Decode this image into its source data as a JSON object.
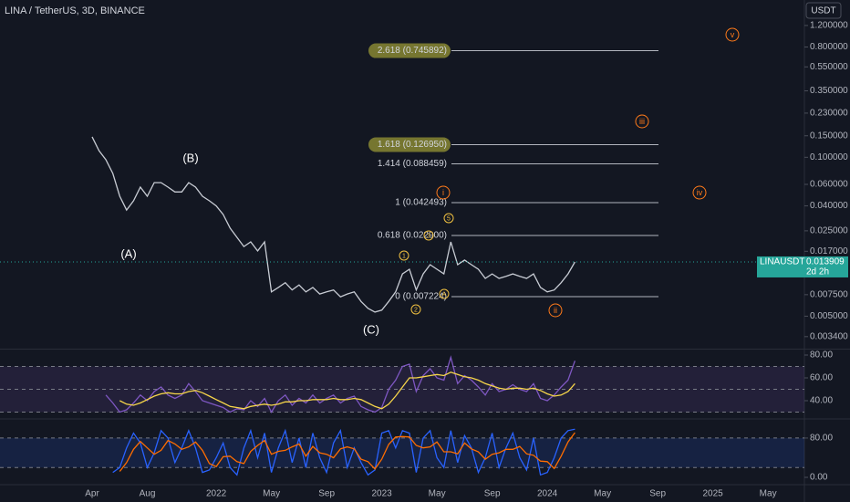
{
  "chart_data": [
    {
      "type": "line",
      "title": "LINA / TetherUS, 3D, BINANCE",
      "unit": "USDT",
      "log_scale": true,
      "ylim": [
        0.00271,
        1.94
      ],
      "yticks": [
        {
          "value": 1.2,
          "label": "1.200000"
        },
        {
          "value": 0.8,
          "label": "0.800000"
        },
        {
          "value": 0.55,
          "label": "0.550000"
        },
        {
          "value": 0.35,
          "label": "0.350000"
        },
        {
          "value": 0.23,
          "label": "0.230000"
        },
        {
          "value": 0.15,
          "label": "0.150000"
        },
        {
          "value": 0.1,
          "label": "0.100000"
        },
        {
          "value": 0.06,
          "label": "0.060000"
        },
        {
          "value": 0.04,
          "label": "0.040000"
        },
        {
          "value": 0.025,
          "label": "0.025000"
        },
        {
          "value": 0.017,
          "label": "0.017000"
        },
        {
          "value": 0.0075,
          "label": "0.007500"
        },
        {
          "value": 0.005,
          "label": "0.005000"
        },
        {
          "value": 0.0034,
          "label": "0.003400"
        }
      ],
      "categories": [
        "Apr",
        null,
        null,
        null,
        null,
        null,
        null,
        null,
        "Aug",
        null,
        null,
        null,
        null,
        null,
        null,
        null,
        null,
        null,
        "2022",
        null,
        null,
        null,
        null,
        null,
        null,
        null,
        "May",
        null,
        null,
        null,
        null,
        null,
        null,
        null,
        "Sep",
        null,
        null,
        null,
        null,
        null,
        null,
        null,
        "2023",
        null,
        null,
        null,
        null,
        null,
        null,
        null,
        "May",
        null,
        null,
        null,
        null,
        null,
        null,
        null,
        "Sep",
        null,
        null,
        null,
        null,
        null,
        null,
        null,
        "2024",
        null,
        null,
        null,
        null,
        null,
        null,
        null,
        "May",
        null,
        null,
        null,
        null,
        null,
        null,
        null,
        "Sep",
        null,
        null,
        null,
        null,
        null,
        null,
        null,
        "2025",
        null,
        null,
        null,
        null,
        null,
        null,
        null,
        "May",
        null,
        null,
        null,
        null,
        null
      ],
      "series": [
        {
          "color": "#c8ccd4",
          "values": [
            0.147,
            0.113,
            0.0955,
            0.0738,
            0.048,
            0.037,
            0.044,
            0.057,
            0.048,
            0.062,
            0.062,
            0.057,
            0.052,
            0.052,
            0.062,
            0.057,
            0.048,
            0.044,
            0.04,
            0.034,
            0.0263,
            0.0221,
            0.0186,
            0.0203,
            0.0171,
            0.0203,
            0.0079,
            0.0086,
            0.0094,
            0.0082,
            0.009,
            0.0079,
            0.0086,
            0.0076,
            0.0079,
            0.0082,
            0.0072,
            0.0076,
            0.0079,
            0.0066,
            0.0058,
            0.0054,
            0.0056,
            0.0066,
            0.0079,
            0.0111,
            0.0121,
            0.0082,
            0.0111,
            0.0132,
            0.0121,
            0.0111,
            0.0203,
            0.0132,
            0.0144,
            0.0132,
            0.0121,
            0.0102,
            0.0111,
            0.0102,
            0.0106,
            0.0111,
            0.0106,
            0.0102,
            0.0111,
            0.0086,
            0.0079,
            0.0082,
            0.0094,
            0.0111,
            0.0139,
            null,
            null,
            null,
            null,
            null,
            null,
            null,
            null,
            null,
            null,
            null,
            null,
            null,
            null,
            null,
            null,
            null,
            null,
            null,
            null,
            null,
            null,
            null,
            null,
            null,
            null,
            null,
            null,
            null,
            null,
            null,
            null,
            null
          ]
        }
      ],
      "fib_levels": [
        {
          "label": "2.618 (0.745892)",
          "value": 0.745892
        },
        {
          "label": "1.618 (0.126950)",
          "value": 0.12695
        },
        {
          "label": "1.414 (0.088459)",
          "value": 0.088459
        },
        {
          "label": "1 (0.042493)",
          "value": 0.042493
        },
        {
          "label": "0.618 (0.022900)",
          "value": 0.0229
        },
        {
          "label": "0 (0.007224)",
          "value": 0.007224
        }
      ],
      "wave_labels": [
        "(A)",
        "(B)",
        "(C)",
        "1",
        "2",
        "3",
        "5",
        "A",
        "i",
        "ii",
        "iii",
        "iv",
        "v"
      ],
      "last_price": {
        "symbol": "LINAUSDT",
        "value": 0.013909,
        "countdown": "2d 2h"
      }
    },
    {
      "type": "line",
      "ylim": [
        24.8,
        84.8
      ],
      "yticks": [
        {
          "value": 80,
          "label": "80.00"
        },
        {
          "value": 60,
          "label": "60.00"
        },
        {
          "value": 40,
          "label": "40.00"
        }
      ],
      "levels": [
        70,
        50,
        30
      ],
      "band": [
        30,
        70
      ],
      "band_color": "#7e57c2",
      "series": [
        {
          "color": "#7e57c2",
          "values": [
            null,
            null,
            45,
            38,
            30,
            32,
            38,
            45,
            40,
            48,
            52,
            45,
            42,
            45,
            55,
            48,
            40,
            38,
            36,
            34,
            30,
            33,
            32,
            40,
            35,
            42,
            30,
            40,
            45,
            36,
            42,
            38,
            45,
            38,
            42,
            45,
            38,
            42,
            44,
            35,
            32,
            30,
            34,
            50,
            58,
            70,
            72,
            48,
            62,
            68,
            60,
            58,
            78,
            55,
            62,
            58,
            52,
            45,
            55,
            48,
            50,
            54,
            50,
            48,
            55,
            42,
            40,
            45,
            52,
            58,
            75,
            null,
            null,
            null,
            null,
            null,
            null,
            null,
            null,
            null,
            null,
            null,
            null,
            null,
            null,
            null,
            null,
            null,
            null,
            null,
            null,
            null,
            null,
            null,
            null,
            null,
            null,
            null,
            null,
            null,
            null,
            null,
            null,
            null
          ]
        },
        {
          "color": "#f7d64a",
          "values": [
            null,
            null,
            null,
            null,
            40,
            37,
            36,
            38,
            41,
            44,
            46,
            47,
            46,
            46,
            48,
            49,
            47,
            44,
            41,
            38,
            35,
            34,
            33,
            35,
            36,
            37,
            36,
            37,
            39,
            39,
            40,
            40,
            41,
            41,
            41,
            42,
            41,
            41,
            42,
            41,
            38,
            35,
            33,
            37,
            44,
            52,
            60,
            60,
            61,
            62,
            63,
            62,
            65,
            63,
            61,
            60,
            58,
            55,
            53,
            51,
            50,
            51,
            51,
            50,
            51,
            49,
            46,
            44,
            45,
            48,
            55,
            null,
            null,
            null,
            null,
            null,
            null,
            null,
            null,
            null,
            null,
            null,
            null,
            null,
            null,
            null,
            null,
            null,
            null,
            null,
            null,
            null,
            null,
            null,
            null,
            null,
            null,
            null,
            null,
            null,
            null,
            null,
            null,
            null
          ]
        }
      ]
    },
    {
      "type": "line",
      "ylim": [
        -13,
        117
      ],
      "yticks": [
        {
          "value": 80,
          "label": "80.00"
        },
        {
          "value": 0,
          "label": "0.00"
        }
      ],
      "levels": [
        80,
        20
      ],
      "band": [
        20,
        80
      ],
      "band_color": "#2962ff",
      "series": [
        {
          "color": "#2962ff",
          "values": [
            null,
            null,
            null,
            10,
            20,
            60,
            90,
            70,
            20,
            50,
            95,
            80,
            30,
            60,
            95,
            60,
            10,
            15,
            40,
            70,
            20,
            5,
            60,
            95,
            40,
            90,
            10,
            60,
            95,
            30,
            80,
            20,
            90,
            40,
            10,
            70,
            95,
            20,
            60,
            30,
            5,
            15,
            90,
            95,
            60,
            95,
            90,
            10,
            80,
            95,
            40,
            20,
            95,
            30,
            85,
            60,
            10,
            40,
            90,
            20,
            60,
            90,
            40,
            15,
            80,
            5,
            10,
            40,
            80,
            95,
            98,
            null,
            null,
            null,
            null,
            null,
            null,
            null,
            null,
            null,
            null,
            null,
            null,
            null,
            null,
            null,
            null,
            null,
            null,
            null,
            null,
            null,
            null,
            null,
            null,
            null,
            null,
            null,
            null,
            null,
            null,
            null,
            null,
            null
          ]
        },
        {
          "color": "#ff6d00",
          "values": [
            null,
            null,
            null,
            null,
            12,
            30,
            57,
            73,
            60,
            47,
            55,
            75,
            68,
            57,
            62,
            72,
            55,
            28,
            22,
            42,
            43,
            32,
            28,
            53,
            65,
            75,
            47,
            53,
            55,
            62,
            68,
            43,
            63,
            50,
            47,
            40,
            58,
            62,
            58,
            37,
            32,
            17,
            37,
            67,
            82,
            83,
            82,
            65,
            60,
            62,
            72,
            52,
            52,
            48,
            70,
            58,
            52,
            37,
            47,
            50,
            57,
            57,
            63,
            48,
            45,
            33,
            32,
            18,
            43,
            72,
            91,
            null,
            null,
            null,
            null,
            null,
            null,
            null,
            null,
            null,
            null,
            null,
            null,
            null,
            null,
            null,
            null,
            null,
            null,
            null,
            null,
            null,
            null,
            null,
            null,
            null,
            null,
            null,
            null,
            null,
            null,
            null,
            null,
            null
          ]
        }
      ]
    }
  ]
}
